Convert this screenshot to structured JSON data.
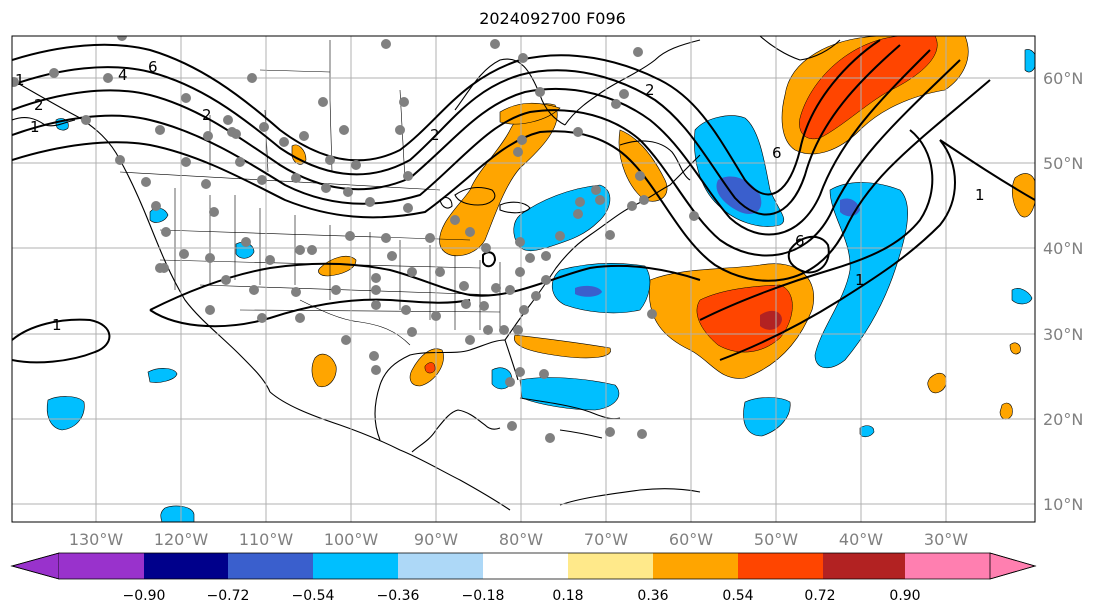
{
  "title": "2024092700 F096",
  "lon_labels": [
    "130°W",
    "120°W",
    "110°W",
    "100°W",
    "90°W",
    "80°W",
    "70°W",
    "60°W",
    "50°W",
    "40°W",
    "30°W"
  ],
  "lat_labels": [
    "60°N",
    "50°N",
    "40°N",
    "30°N",
    "20°N",
    "10°N"
  ],
  "colorbar": {
    "ticks": [
      "−0.90",
      "−0.72",
      "−0.54",
      "−0.36",
      "−0.18",
      "0.18",
      "0.36",
      "0.54",
      "0.72",
      "0.90"
    ],
    "colors": {
      "under": "#9932cc",
      "c1": "#00008b",
      "c2": "#3a5fcd",
      "c3": "#00bfff",
      "c4": "#add8f7",
      "c5": "#ffffff",
      "c6": "#ffe98a",
      "c7": "#ffa500",
      "c8": "#ff4500",
      "c9": "#b22222",
      "over": "#ff7fb0"
    }
  },
  "contour_labels": [
    "1",
    "2",
    "6",
    "4",
    "2",
    "2",
    "6",
    "6",
    "1",
    "1",
    "1",
    "2",
    "1"
  ],
  "colors": {
    "station_dot": "#808080",
    "grid": "#b0b0b0",
    "contour": "#000000"
  }
}
